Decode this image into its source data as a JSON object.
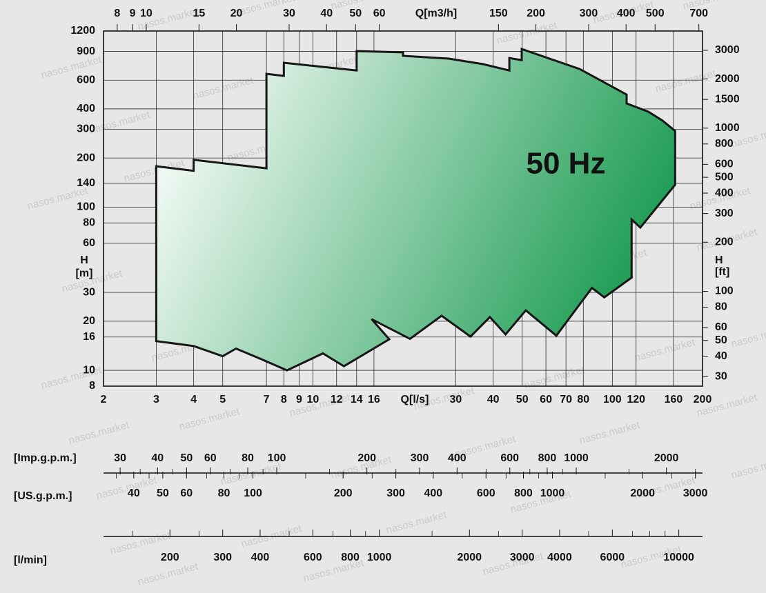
{
  "chart_data": {
    "type": "area",
    "annotation": "50 Hz",
    "watermark": "nasos.market",
    "x_label": "Q[l/s]",
    "x2_label": "Q[m3/h]",
    "y_label": [
      "H",
      "[m]"
    ],
    "y2_label": [
      "H",
      "[ft]"
    ],
    "log_x": true,
    "log_y": true,
    "grid": true,
    "color": "#0a9445",
    "gradient_start": "#ffffff",
    "xlim": [
      2,
      200
    ],
    "xticks": [
      2,
      3,
      4,
      5,
      7,
      8,
      9,
      10,
      12,
      14,
      16,
      30,
      40,
      50,
      60,
      70,
      80,
      100,
      120,
      160,
      200
    ],
    "ylim": [
      8,
      1200
    ],
    "yticks": [
      8,
      10,
      16,
      20,
      30,
      60,
      80,
      100,
      140,
      200,
      300,
      400,
      600,
      900,
      1200
    ],
    "x2lim": [
      7.2,
      720
    ],
    "x2ticks": [
      8,
      9,
      10,
      15,
      20,
      30,
      40,
      50,
      60,
      150,
      200,
      300,
      400,
      500,
      700
    ],
    "y2lim": [
      26.25,
      3937
    ],
    "y2ticks": [
      30,
      40,
      50,
      60,
      80,
      100,
      200,
      300,
      400,
      500,
      600,
      800,
      1000,
      1500,
      2000,
      3000
    ],
    "x": [
      3,
      4,
      4,
      7,
      7,
      8,
      8,
      14,
      14,
      20,
      20,
      28.4,
      37,
      45.3,
      45.3,
      49.8,
      49.8,
      77.8,
      111.6,
      111.6,
      132,
      147,
      162,
      162,
      124,
      116,
      116,
      94,
      85.5,
      65,
      51.4,
      44,
      39,
      33.6,
      26.9,
      21.1,
      15.7,
      18,
      12.7,
      10.8,
      8.2,
      6.8,
      5.54,
      5,
      4,
      3
    ],
    "values": [
      178,
      167,
      195,
      173,
      656,
      637,
      767,
      688,
      904,
      888,
      845,
      813,
      752,
      688,
      820,
      796,
      931,
      702,
      490,
      432,
      384,
      339,
      293,
      137,
      75,
      84,
      37,
      28,
      32,
      16.3,
      23.3,
      16.6,
      21.2,
      16.1,
      21.6,
      15.6,
      20.6,
      15.5,
      10.6,
      12.7,
      10,
      11.6,
      13.6,
      12.2,
      14.1,
      15.1
    ],
    "scales": [
      {
        "label": "[Imp.g.p.m.]",
        "side": "above",
        "lim": [
          26.4,
          2640
        ],
        "ticks": [
          30,
          40,
          50,
          60,
          80,
          100,
          200,
          300,
          400,
          600,
          800,
          1000,
          2000
        ],
        "minor_ticks": [
          35,
          45,
          70,
          90,
          150,
          250,
          500,
          700,
          900,
          1500,
          2500
        ]
      },
      {
        "label": "[US.g.p.m.]",
        "side": "below",
        "lim": [
          31.7,
          3170
        ],
        "ticks": [
          40,
          50,
          60,
          80,
          100,
          200,
          300,
          400,
          600,
          800,
          1000,
          2000,
          3000
        ],
        "minor_ticks": [
          35,
          45,
          70,
          90,
          150,
          250,
          500,
          700,
          900,
          1500,
          2500
        ]
      },
      {
        "label": "[l/min]",
        "side": "below",
        "lim": [
          120,
          12000
        ],
        "ticks": [
          200,
          300,
          400,
          600,
          800,
          1000,
          2000,
          3000,
          4000,
          6000,
          10000
        ],
        "minor_ticks": [
          150,
          250,
          500,
          700,
          900,
          1500,
          2500,
          5000,
          7000,
          8000,
          9000
        ]
      }
    ]
  }
}
